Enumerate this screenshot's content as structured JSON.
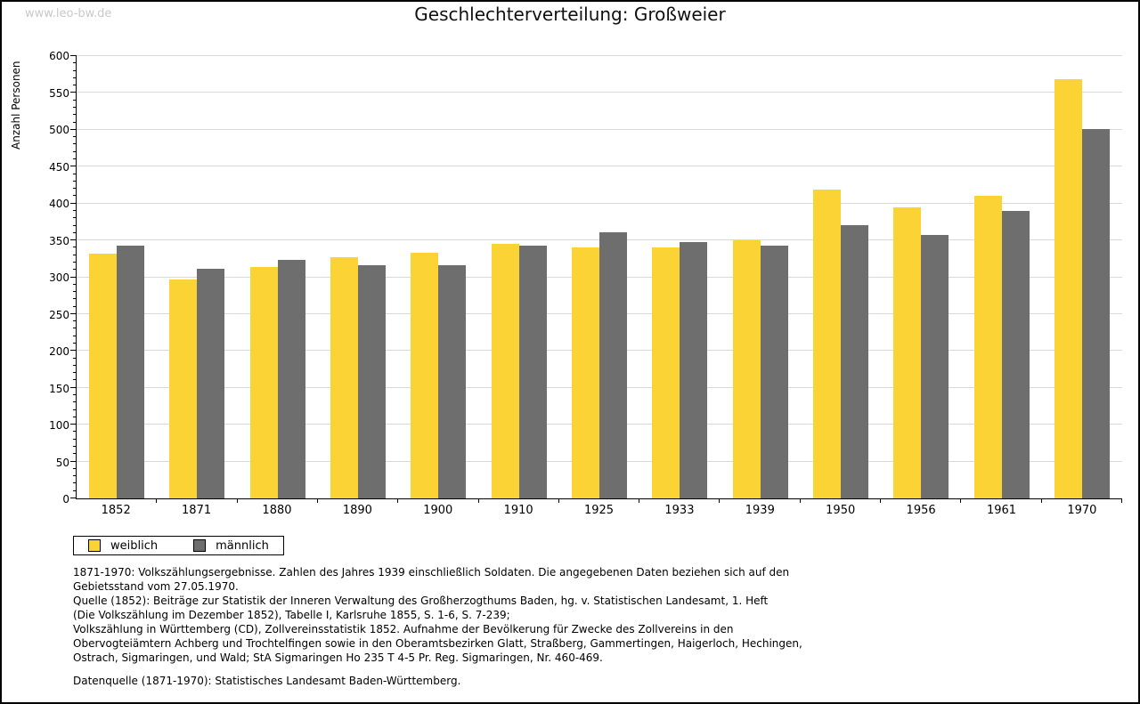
{
  "watermark": "www.leo-bw.de",
  "title": "Geschlechterverteilung: Großweier",
  "chart_data": {
    "type": "bar",
    "title": "Geschlechterverteilung: Großweier",
    "xlabel": "",
    "ylabel": "Anzahl Personen",
    "ylim": [
      0,
      600
    ],
    "ytick_step": 50,
    "ytick_minor_step": 10,
    "grid": true,
    "legend_position": "bottom-left",
    "categories": [
      "1852",
      "1871",
      "1880",
      "1890",
      "1900",
      "1910",
      "1925",
      "1933",
      "1939",
      "1950",
      "1956",
      "1961",
      "1970"
    ],
    "series": [
      {
        "name": "weiblich",
        "color": "#fbd335",
        "values": [
          332,
          297,
          314,
          327,
          333,
          345,
          341,
          340,
          350,
          419,
          395,
          411,
          569
        ]
      },
      {
        "name": "männlich",
        "color": "#6e6e6e",
        "values": [
          343,
          311,
          323,
          316,
          316,
          343,
          361,
          348,
          343,
          371,
          357,
          390,
          501
        ]
      }
    ]
  },
  "legend": {
    "items": [
      {
        "label": "weiblich",
        "color": "#fbd335"
      },
      {
        "label": "männlich",
        "color": "#6e6e6e"
      }
    ]
  },
  "footnotes": {
    "lines": [
      "1871-1970: Volkszählungsergebnisse. Zahlen des Jahres 1939 einschließlich Soldaten. Die angegebenen Daten beziehen sich auf den",
      "Gebietsstand vom 27.05.1970.",
      "Quelle (1852): Beiträge zur Statistik der Inneren Verwaltung des Großherzogthums Baden, hg. v. Statistischen Landesamt, 1. Heft",
      "(Die Volkszählung im Dezember 1852), Tabelle I, Karlsruhe 1855, S. 1-6, S. 7-239;",
      "Volkszählung in Württemberg (CD), Zollvereinsstatistik 1852. Aufnahme der Bevölkerung für Zwecke des Zollvereins in den",
      "Obervogteiämtern Achberg und Trochtelfingen sowie in den Oberamtsbezirken Glatt, Straßberg, Gammertingen, Haigerloch, Hechingen,",
      "Ostrach, Sigmaringen, und Wald; StA Sigmaringen Ho 235 T 4-5 Pr. Reg. Sigmaringen, Nr. 460-469."
    ],
    "source": "Datenquelle (1871-1970): Statistisches Landesamt Baden-Württemberg."
  },
  "colors": {
    "frame": "#000000",
    "gridline": "#d9d9d9",
    "axis": "#000000",
    "watermark": "#c9c9c9",
    "weiblich": "#fbd335",
    "männlich": "#6e6e6e"
  }
}
